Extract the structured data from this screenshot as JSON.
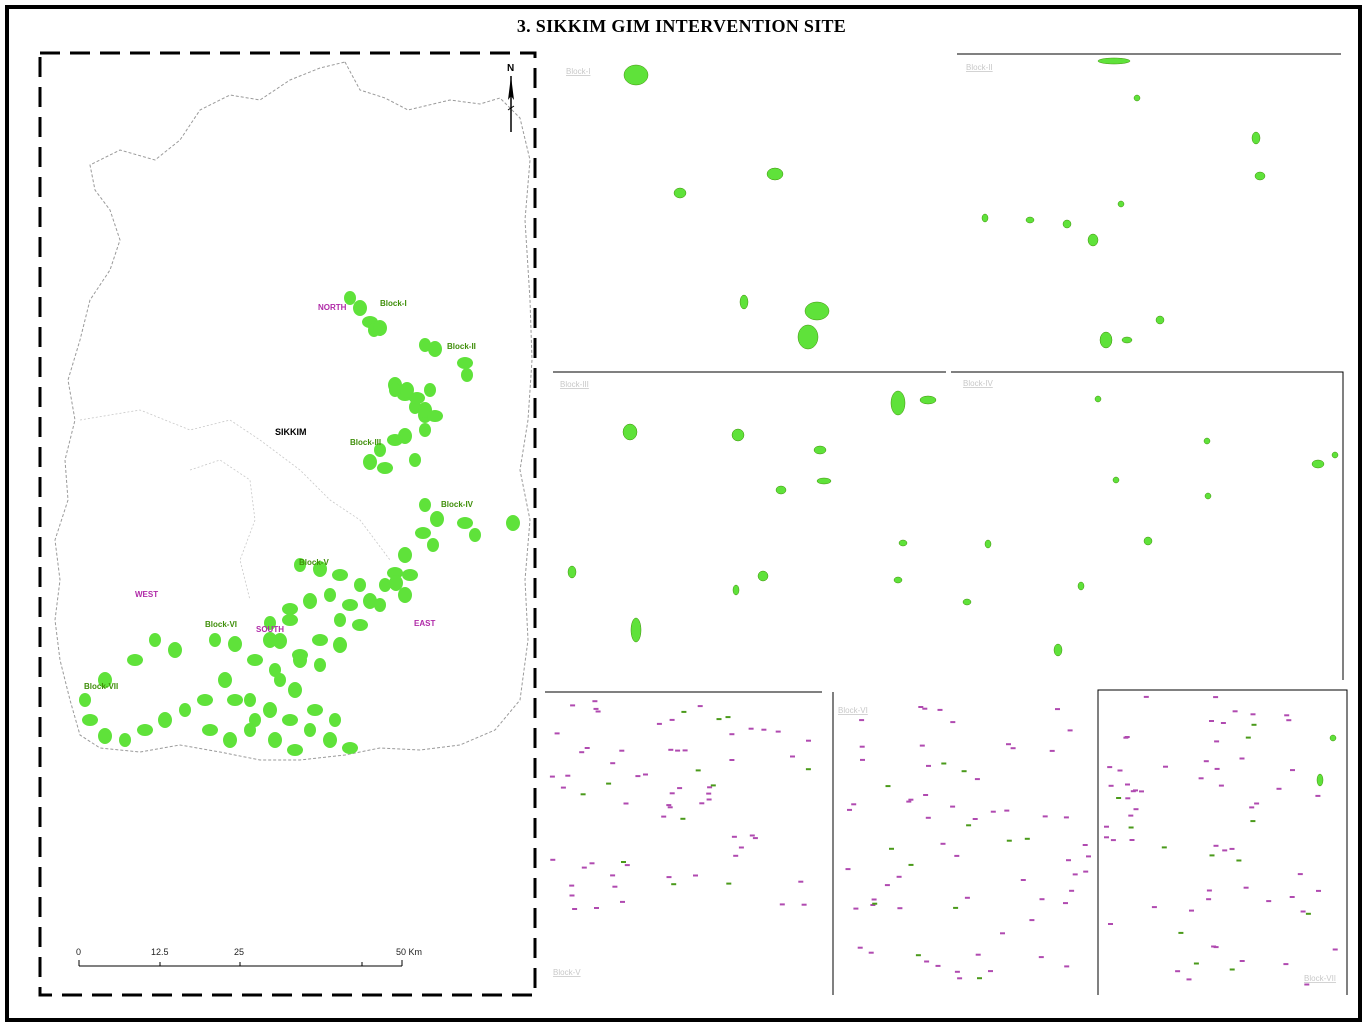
{
  "title": "3. SIKKIM GIM INTERVENTION SITE",
  "colors": {
    "patch": "#5fe23a",
    "patch_dark": "#3f8f0a",
    "district_label": "#b02aa8",
    "block_label": "#3f8f0a",
    "panel_label": "#c8c8c8",
    "boundary": "#9a9a9a"
  },
  "main_map": {
    "state_label": "SIKKIM",
    "north_arrow": "N",
    "districts": [
      "NORTH",
      "WEST",
      "SOUTH",
      "EAST"
    ],
    "blocks": [
      "Block-I",
      "Block-II",
      "Block-III",
      "Block-IV",
      "Block-V",
      "Block-VI",
      "Block-VII"
    ],
    "scale_bar": {
      "ticks": [
        "0",
        "12.5",
        "25",
        "50 Km"
      ]
    }
  },
  "panels": [
    {
      "label": "Block-I"
    },
    {
      "label": "Block-II"
    },
    {
      "label": "Block-III"
    },
    {
      "label": "Block-IV"
    },
    {
      "label": "Block-V"
    },
    {
      "label": "Block-VI"
    },
    {
      "label": "Block-VII"
    }
  ]
}
